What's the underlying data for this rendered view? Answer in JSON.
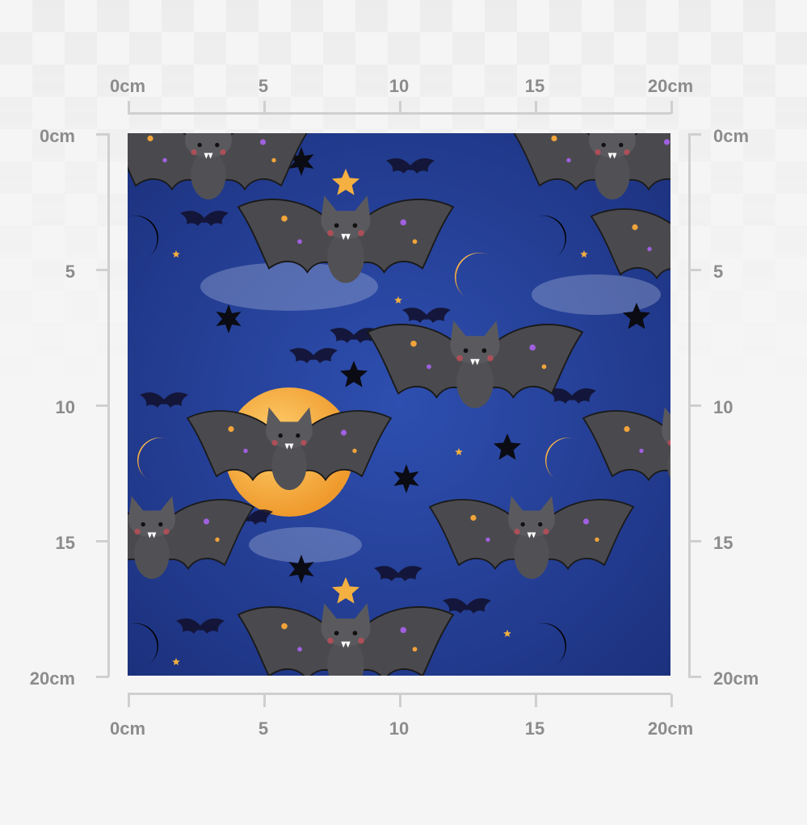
{
  "rulers": {
    "top": [
      "0cm",
      "5",
      "10",
      "15",
      "20cm"
    ],
    "bottom": [
      "0cm",
      "5",
      "10",
      "15",
      "20cm"
    ],
    "left": [
      "0cm",
      "5",
      "10",
      "15",
      "20cm"
    ],
    "right": [
      "0cm",
      "5",
      "10",
      "15",
      "20cm"
    ]
  },
  "pattern": {
    "motif": "halloween bats with moons and stars",
    "colors": {
      "sky": "#24409a",
      "moon": "#f2a43a",
      "bat": "#4a4a4e",
      "star_dark": "#0b0b14"
    }
  }
}
